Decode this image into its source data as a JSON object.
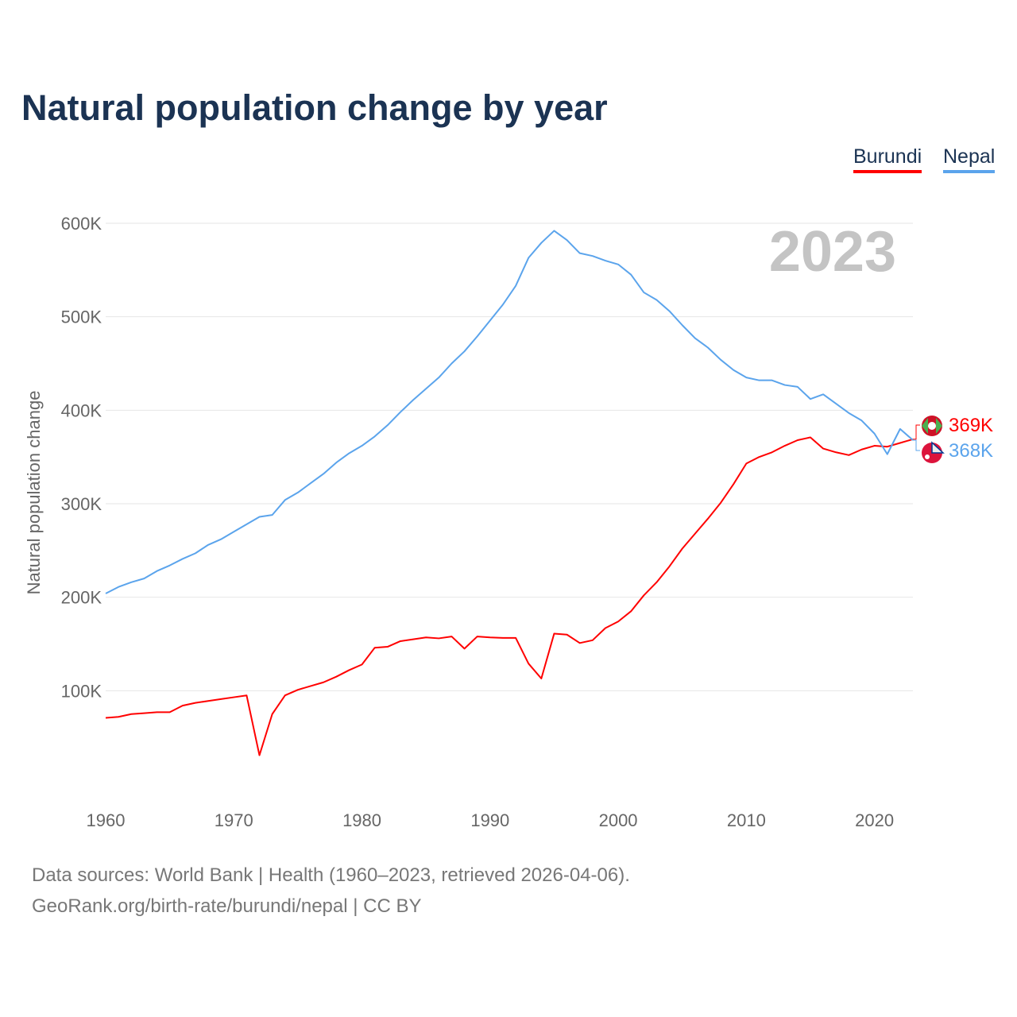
{
  "chart_data": {
    "type": "line",
    "title": "Natural population change by year",
    "xlabel": "",
    "ylabel": "Natural population change",
    "year_watermark": "2023",
    "xlim": [
      1960,
      2023
    ],
    "ylim": [
      0,
      600000
    ],
    "x_ticks": [
      "1960",
      "1970",
      "1980",
      "1990",
      "2000",
      "2010",
      "2020"
    ],
    "y_ticks": [
      {
        "v": 100000,
        "label": "100K"
      },
      {
        "v": 200000,
        "label": "200K"
      },
      {
        "v": 300000,
        "label": "300K"
      },
      {
        "v": 400000,
        "label": "400K"
      },
      {
        "v": 500000,
        "label": "500K"
      },
      {
        "v": 600000,
        "label": "600K"
      }
    ],
    "grid": true,
    "legend_position": "top-right",
    "x": [
      1960,
      1961,
      1962,
      1963,
      1964,
      1965,
      1966,
      1967,
      1968,
      1969,
      1970,
      1971,
      1972,
      1973,
      1974,
      1975,
      1976,
      1977,
      1978,
      1979,
      1980,
      1981,
      1982,
      1983,
      1984,
      1985,
      1986,
      1987,
      1988,
      1989,
      1990,
      1991,
      1992,
      1993,
      1994,
      1995,
      1996,
      1997,
      1998,
      1999,
      2000,
      2001,
      2002,
      2003,
      2004,
      2005,
      2006,
      2007,
      2008,
      2009,
      2010,
      2011,
      2012,
      2013,
      2014,
      2015,
      2016,
      2017,
      2018,
      2019,
      2020,
      2021,
      2022,
      2023
    ],
    "series": [
      {
        "name": "Burundi",
        "color": "#ff0000",
        "end_label": "369K",
        "values": [
          71,
          72,
          75,
          76,
          77,
          77,
          84,
          87,
          89,
          91,
          93,
          95,
          31,
          75,
          95,
          101,
          105,
          109,
          115,
          122,
          128,
          146,
          147,
          153,
          155,
          157,
          156,
          158,
          145,
          158,
          157,
          156.5,
          156.5,
          129,
          113,
          161,
          160,
          151,
          154,
          167,
          174,
          185,
          202,
          216,
          233,
          252,
          268,
          284,
          301,
          321,
          343,
          350,
          355,
          362,
          368,
          371,
          359,
          355,
          352,
          358,
          362,
          361,
          365,
          369
        ]
      },
      {
        "name": "Nepal",
        "color": "#5ba4ec",
        "end_label": "368K",
        "values": [
          204,
          211,
          216,
          220,
          228,
          234,
          241,
          247,
          256,
          262,
          270,
          278,
          286,
          288,
          304,
          312,
          322,
          332,
          344,
          354,
          362,
          372,
          384,
          398,
          411,
          423,
          435,
          450,
          463,
          479,
          496,
          513,
          533,
          563,
          579,
          592,
          582,
          568,
          565,
          560,
          556,
          545,
          526,
          518,
          506,
          491,
          477,
          467,
          454,
          443,
          435,
          432,
          432,
          427,
          425,
          412,
          417,
          407,
          397,
          389,
          375,
          353,
          380,
          368
        ]
      }
    ],
    "value_unit": "thousands"
  },
  "footer": {
    "line1": "Data sources: World Bank | Health (1960–2023, retrieved 2026-04-06).",
    "line2": "GeoRank.org/birth-rate/burundi/nepal | CC BY"
  }
}
